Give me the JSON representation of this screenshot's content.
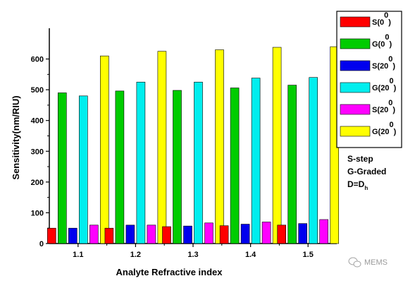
{
  "chart_data": {
    "type": "bar",
    "xlabel": "Analyte Refractive index",
    "ylabel": "Sensitivity(nm/RIU)",
    "categories": [
      "1.1",
      "1.2",
      "1.3",
      "1.4",
      "1.5"
    ],
    "ylim": [
      0,
      700
    ],
    "yticks": [
      0,
      100,
      200,
      300,
      400,
      500,
      600
    ],
    "grid": false,
    "legend_position": "right",
    "series": [
      {
        "name": "S(0",
        "sup": "0",
        "suffix": ")",
        "color": "#ff0000",
        "values": [
          50,
          50,
          55,
          58,
          60
        ]
      },
      {
        "name": "G(0",
        "sup": "0",
        "suffix": ")",
        "color": "#00cc00",
        "values": [
          490,
          496,
          498,
          506,
          515
        ]
      },
      {
        "name": "S(20",
        "sup": "0",
        "suffix": ")",
        "color": "#0000ee",
        "values": [
          50,
          60,
          57,
          63,
          65
        ]
      },
      {
        "name": "G(20",
        "sup": "0",
        "suffix": ")",
        "color": "#00eeee",
        "values": [
          480,
          525,
          525,
          538,
          540
        ]
      },
      {
        "name": "S(20",
        "sup": "0",
        "suffix": ")",
        "color": "#ff00ff",
        "values": [
          60,
          60,
          67,
          70,
          78
        ]
      },
      {
        "name": "G(20",
        "sup": "0",
        "suffix": ")",
        "color": "#ffff00",
        "values": [
          610,
          625,
          630,
          638,
          640
        ]
      }
    ],
    "notes": {
      "line1": "S-step",
      "line2": "G-Graded",
      "line3_main": "D=D",
      "line3_sub": "h"
    }
  },
  "watermark": {
    "icon": "wechat-icon",
    "text": "MEMS"
  }
}
